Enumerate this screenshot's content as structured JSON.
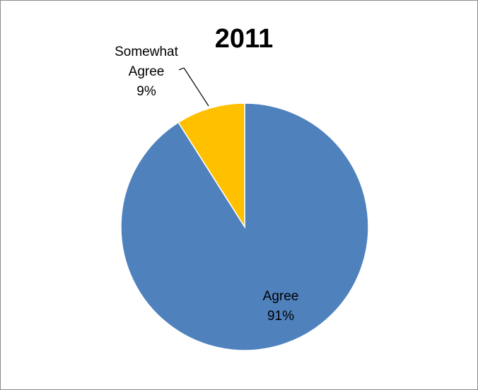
{
  "chart_data": {
    "type": "pie",
    "title": "2011",
    "slices": [
      {
        "label": "Agree",
        "percent_label": "91%",
        "value": 91,
        "color": "#4F81BD"
      },
      {
        "label": "Somewhat Agree",
        "percent_label": "9%",
        "value": 9,
        "color": "#FFC000"
      }
    ],
    "data_labels": [
      {
        "lines": [
          "Agree",
          "91%"
        ]
      },
      {
        "lines": [
          "Somewhat",
          "Agree",
          "9%"
        ]
      }
    ],
    "legend": "none",
    "start_angle_deg": 0,
    "direction": "clockwise"
  }
}
